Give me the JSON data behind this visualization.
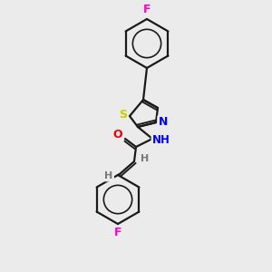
{
  "background_color": "#ebebeb",
  "bond_color": "#1a1a1a",
  "atom_colors": {
    "F": "#ff00cc",
    "S": "#cccc00",
    "N": "#0000ee",
    "O": "#ee0000",
    "H": "#777777"
  },
  "figsize": [
    3.0,
    3.0
  ],
  "dpi": 100
}
